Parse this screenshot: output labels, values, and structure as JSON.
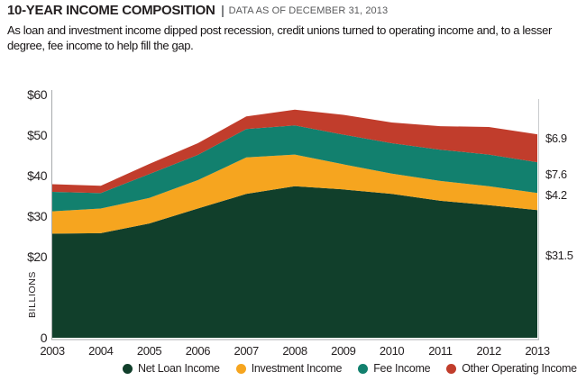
{
  "header": {
    "title": "10-YEAR INCOME COMPOSITION",
    "data_as_of": "DATA AS OF DECEMBER 31, 2013",
    "subtitle": "As loan and investment income dipped post recession, credit unions turned to operating income and, to a lesser degree, fee income to help fill the gap."
  },
  "chart_data": {
    "type": "area",
    "stacked": true,
    "title": "10-YEAR INCOME COMPOSITION",
    "xlabel": "",
    "ylabel": "BILLIONS",
    "x": [
      2003,
      2004,
      2005,
      2006,
      2007,
      2008,
      2009,
      2010,
      2011,
      2012,
      2013
    ],
    "ylim": [
      0,
      60
    ],
    "grid": false,
    "legend_position": "bottom",
    "yticks": [
      {
        "value": 60,
        "label": "$60"
      },
      {
        "value": 50,
        "label": "$50"
      },
      {
        "value": 40,
        "label": "$40"
      },
      {
        "value": 30,
        "label": "$30"
      },
      {
        "value": 20,
        "label": "$20"
      },
      {
        "value": 0,
        "label": "0"
      }
    ],
    "series": [
      {
        "name": "Net Loan Income",
        "color": "#113f2b",
        "end_label": "$31.5",
        "values": [
          25.7,
          25.8,
          28.2,
          31.9,
          35.5,
          37.4,
          36.6,
          35.5,
          33.8,
          32.7,
          31.5
        ]
      },
      {
        "name": "Investment Income",
        "color": "#f6a51f",
        "end_label": "$4.2",
        "values": [
          5.5,
          6.1,
          6.3,
          7.0,
          9.0,
          7.8,
          6.2,
          5.0,
          4.9,
          4.7,
          4.2
        ]
      },
      {
        "name": "Fee Income",
        "color": "#12806e",
        "end_label": "$7.6",
        "values": [
          4.8,
          3.8,
          5.9,
          6.2,
          7.0,
          7.2,
          7.3,
          7.5,
          7.7,
          7.8,
          7.6
        ]
      },
      {
        "name": "Other Operating Income",
        "color": "#c13d2c",
        "end_label": "$6.9",
        "values": [
          1.9,
          1.8,
          2.5,
          2.9,
          3.1,
          3.9,
          4.9,
          5.1,
          5.8,
          6.8,
          6.9
        ]
      }
    ]
  }
}
